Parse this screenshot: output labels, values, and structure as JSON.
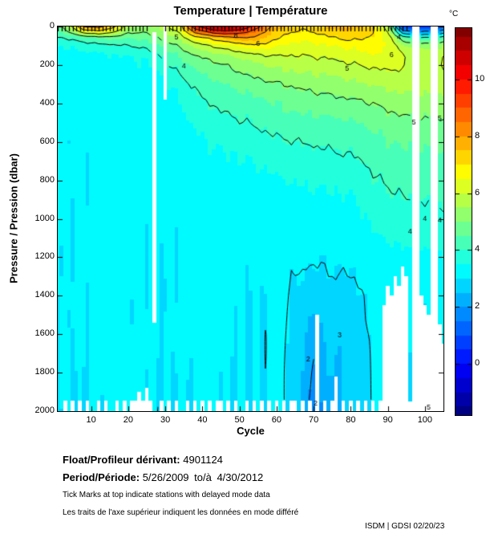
{
  "title": "Temperature | Température",
  "axes": {
    "x_label": "Cycle",
    "y_label": "Pressure / Pression (dbar)",
    "x_ticks": [
      10,
      20,
      30,
      40,
      50,
      60,
      70,
      80,
      90,
      100
    ],
    "y_ticks": [
      0,
      200,
      400,
      600,
      800,
      1000,
      1200,
      1400,
      1600,
      1800,
      2000
    ],
    "x_range": [
      1,
      105
    ],
    "y_range": [
      0,
      2000
    ]
  },
  "colorbar": {
    "label": "°C",
    "ticks": [
      10,
      8,
      6,
      4,
      2,
      0
    ],
    "vmin": -1.8,
    "vmax": 11.8
  },
  "footer": {
    "float_label": "Float/Profileur dérivant:",
    "float_value": "4901124",
    "period_label": "Period/Période:",
    "period_value": "5/26/2009 to/à 4/30/2012",
    "note_en": "Tick Marks at top indicate stations with delayed mode data",
    "note_fr": "Les traits de l'axe supérieur indiquent les données en mode différé",
    "credit": "ISDM | GDSI 02/20/23"
  },
  "chart_data": {
    "type": "heatmap",
    "title": "Temperature | Température",
    "xlabel": "Cycle",
    "ylabel": "Pressure / Pression (dbar)",
    "x_range": [
      1,
      105
    ],
    "y_range": [
      0,
      2000
    ],
    "colormap": "jet",
    "vmin": -1.8,
    "vmax": 11.8,
    "band_step": 0.5,
    "wiggle": 0.07,
    "contour_levels": [
      2,
      3,
      4,
      5,
      6,
      7,
      8,
      9,
      10
    ],
    "cycles": [
      1,
      4,
      8,
      12,
      16,
      20,
      24,
      28,
      31,
      34,
      38,
      42,
      46,
      50,
      54,
      58,
      62,
      66,
      70,
      74,
      78,
      82,
      86,
      90,
      94,
      98,
      102,
      105
    ],
    "pressures": [
      0,
      30,
      60,
      100,
      150,
      200,
      300,
      400,
      500,
      600,
      800,
      1000,
      1200,
      1400,
      1600,
      1800,
      2000
    ],
    "temperatures": [
      [
        4.6,
        4.3,
        3.9,
        3.5,
        3.3,
        3.25,
        3.2,
        3.15,
        3.15,
        3.1,
        3.1,
        3.08,
        3.06,
        3.05,
        3.05,
        3.03,
        3.02
      ],
      [
        5.6,
        5.0,
        4.1,
        3.6,
        3.35,
        3.28,
        3.2,
        3.15,
        3.15,
        3.1,
        3.1,
        3.08,
        3.06,
        3.05,
        3.05,
        3.03,
        3.02
      ],
      [
        8.0,
        6.2,
        4.3,
        3.7,
        3.38,
        3.28,
        3.2,
        3.15,
        3.15,
        3.12,
        3.1,
        3.08,
        3.06,
        3.05,
        3.05,
        3.03,
        3.02
      ],
      [
        8.3,
        6.6,
        4.6,
        3.8,
        3.4,
        3.3,
        3.22,
        3.16,
        3.15,
        3.12,
        3.1,
        3.08,
        3.06,
        3.05,
        3.05,
        3.03,
        3.02
      ],
      [
        7.2,
        6.0,
        4.6,
        3.9,
        3.45,
        3.32,
        3.22,
        3.16,
        3.15,
        3.12,
        3.1,
        3.08,
        3.06,
        3.05,
        3.05,
        3.03,
        3.02
      ],
      [
        5.6,
        5.1,
        4.5,
        4.0,
        3.5,
        3.35,
        3.24,
        3.18,
        3.15,
        3.12,
        3.1,
        3.08,
        3.06,
        3.05,
        3.05,
        3.03,
        3.02
      ],
      [
        5.3,
        5.0,
        4.6,
        4.1,
        3.6,
        3.42,
        3.26,
        3.18,
        3.16,
        3.13,
        3.1,
        3.08,
        3.06,
        3.05,
        3.05,
        3.03,
        3.02
      ],
      [
        5.6,
        5.3,
        5.0,
        4.5,
        3.95,
        3.62,
        3.32,
        3.22,
        3.17,
        3.14,
        3.1,
        3.08,
        3.06,
        3.05,
        3.05,
        3.03,
        3.02
      ],
      [
        6.1,
        5.7,
        5.3,
        4.8,
        4.3,
        4.0,
        3.5,
        3.32,
        3.22,
        3.17,
        3.1,
        3.08,
        3.06,
        3.05,
        3.05,
        3.03,
        3.02
      ],
      [
        6.6,
        6.1,
        5.6,
        5.1,
        4.6,
        4.25,
        3.75,
        3.5,
        3.32,
        3.22,
        3.12,
        3.08,
        3.06,
        3.05,
        3.05,
        3.03,
        3.02
      ],
      [
        9.6,
        8.1,
        6.6,
        5.6,
        5.0,
        4.6,
        4.1,
        3.8,
        3.55,
        3.38,
        3.16,
        3.08,
        3.06,
        3.05,
        3.05,
        3.03,
        3.02
      ],
      [
        10.9,
        9.1,
        7.1,
        6.0,
        5.2,
        4.8,
        4.3,
        4.0,
        3.7,
        3.48,
        3.2,
        3.1,
        3.06,
        3.05,
        3.05,
        3.03,
        3.02
      ],
      [
        11.3,
        9.6,
        7.6,
        6.3,
        5.45,
        5.0,
        4.5,
        4.15,
        3.85,
        3.58,
        3.25,
        3.12,
        3.07,
        3.05,
        3.05,
        3.03,
        3.02
      ],
      [
        11.1,
        9.2,
        7.9,
        6.6,
        5.65,
        5.2,
        4.65,
        4.25,
        3.95,
        3.68,
        3.3,
        3.12,
        3.07,
        3.05,
        3.05,
        3.03,
        3.02
      ],
      [
        9.6,
        8.6,
        7.9,
        6.9,
        5.85,
        5.4,
        4.8,
        4.35,
        4.05,
        3.78,
        3.35,
        3.15,
        3.08,
        3.05,
        3.03,
        3.03,
        3.02
      ],
      [
        8.1,
        7.6,
        7.3,
        6.7,
        6.0,
        5.55,
        4.9,
        4.45,
        4.15,
        3.88,
        3.4,
        3.15,
        3.08,
        3.05,
        3.03,
        3.03,
        3.02
      ],
      [
        7.6,
        7.1,
        6.9,
        6.4,
        6.0,
        5.65,
        5.0,
        4.55,
        4.25,
        3.95,
        3.45,
        3.2,
        3.08,
        3.04,
        3.03,
        3.02,
        3.02
      ],
      [
        7.1,
        6.9,
        6.6,
        6.3,
        6.0,
        5.7,
        5.1,
        4.65,
        4.3,
        4.0,
        3.5,
        3.25,
        3.08,
        2.9,
        2.75,
        2.6,
        2.5
      ],
      [
        7.3,
        7.0,
        6.7,
        6.35,
        6.05,
        5.75,
        5.2,
        4.7,
        4.35,
        4.05,
        3.55,
        3.25,
        3.06,
        2.7,
        2.2,
        1.9,
        1.7
      ],
      [
        7.6,
        7.2,
        6.9,
        6.5,
        6.1,
        5.8,
        5.25,
        4.8,
        4.4,
        4.1,
        3.6,
        3.3,
        3.08,
        2.9,
        2.7,
        2.5,
        2.3
      ],
      [
        7.9,
        7.4,
        7.1,
        6.6,
        6.2,
        5.9,
        5.35,
        4.85,
        4.45,
        4.15,
        3.65,
        3.3,
        3.1,
        2.85,
        2.55,
        2.5,
        2.6
      ],
      [
        7.6,
        7.3,
        7.1,
        6.7,
        6.3,
        6.0,
        5.45,
        4.9,
        4.5,
        4.2,
        3.7,
        3.35,
        3.12,
        2.95,
        2.92,
        2.9,
        2.9
      ],
      [
        7.1,
        7.0,
        6.9,
        6.7,
        6.45,
        6.1,
        5.5,
        5.0,
        4.6,
        4.3,
        3.95,
        3.6,
        3.2,
        3.06,
        3.04,
        3.03,
        3.02
      ],
      [
        5.6,
        6.1,
        6.4,
        6.5,
        6.4,
        6.15,
        5.6,
        5.15,
        4.75,
        4.45,
        4.05,
        3.7,
        3.3,
        3.08,
        3.05,
        3.03,
        3.02
      ],
      [
        0.8,
        2.6,
        4.6,
        5.6,
        6.1,
        6.05,
        5.7,
        5.25,
        4.85,
        4.55,
        4.15,
        3.8,
        3.4,
        3.1,
        3.06,
        3.04,
        3.02
      ],
      [
        0.5,
        2.1,
        4.1,
        5.3,
        5.9,
        5.95,
        5.72,
        5.3,
        4.9,
        4.6,
        4.2,
        3.85,
        3.45,
        3.12,
        3.07,
        3.04,
        3.02
      ],
      [
        0.7,
        2.3,
        4.3,
        5.4,
        5.9,
        6.0,
        5.75,
        5.32,
        4.92,
        4.62,
        4.2,
        3.88,
        3.48,
        3.14,
        3.08,
        3.05,
        3.02
      ],
      [
        1.0,
        2.6,
        4.4,
        5.5,
        5.95,
        6.0,
        5.78,
        5.35,
        4.95,
        4.65,
        4.22,
        3.9,
        3.5,
        3.15,
        3.08,
        3.05,
        3.02
      ]
    ],
    "contour_labels": [
      {
        "v": 5,
        "c": 33,
        "p": 55
      },
      {
        "v": 4,
        "c": 35,
        "p": 205
      },
      {
        "v": 8,
        "c": 49,
        "p": 50
      },
      {
        "v": 6,
        "c": 55,
        "p": 90
      },
      {
        "v": 5,
        "c": 79,
        "p": 220
      },
      {
        "v": 4,
        "c": 93,
        "p": 55
      },
      {
        "v": 6,
        "c": 91,
        "p": 150
      },
      {
        "v": 5,
        "c": 97,
        "p": 500
      },
      {
        "v": 4,
        "c": 100,
        "p": 1000
      },
      {
        "v": 4,
        "c": 96,
        "p": 1065
      },
      {
        "v": 2,
        "c": 68.5,
        "p": 1730
      },
      {
        "v": 3,
        "c": 77,
        "p": 1605
      },
      {
        "v": 2,
        "c": 70.5,
        "p": 1960
      },
      {
        "v": 5,
        "c": 104,
        "p": 480
      },
      {
        "v": 4,
        "c": 104,
        "p": 1010
      },
      {
        "v": 5,
        "c": 101,
        "p": 1980
      }
    ],
    "delayed_tick_ranges": [
      [
        1,
        25
      ],
      [
        30,
        95
      ]
    ],
    "missing": {
      "full_columns": [
        97,
        98,
        102,
        103
      ],
      "partials": [
        {
          "cycle": 27,
          "p0": 30,
          "p1": 1540
        },
        {
          "cycle": 30,
          "p0": 0,
          "p1": 380
        },
        {
          "cycle": 71,
          "p0": 1500,
          "p1": 2000
        },
        {
          "cycle": 76,
          "p0": 1820,
          "p1": 2000
        },
        {
          "cycle": 23,
          "p0": 1900,
          "p1": 2000
        },
        {
          "cycle": 25,
          "p0": 1880,
          "p1": 2000
        }
      ],
      "max_depth": {
        "89": 1450,
        "90": 1350,
        "91": 1400,
        "92": 1300,
        "93": 1350,
        "94": 1250,
        "95": 1300,
        "96": 1950,
        "99": 1400,
        "100": 1450,
        "101": 1500,
        "104": 1550,
        "105": 1650
      },
      "bottom_notches": {
        "cycles": [
          3,
          5,
          7,
          9,
          12,
          14,
          17,
          19,
          21,
          22,
          24,
          26,
          29,
          31,
          33,
          36,
          38,
          40,
          42,
          44,
          45,
          47,
          49,
          52,
          54,
          56,
          58,
          60,
          62,
          64,
          65,
          67,
          69,
          73,
          75,
          78,
          80,
          82,
          84,
          86,
          88
        ],
        "p0": 1945
      }
    }
  }
}
